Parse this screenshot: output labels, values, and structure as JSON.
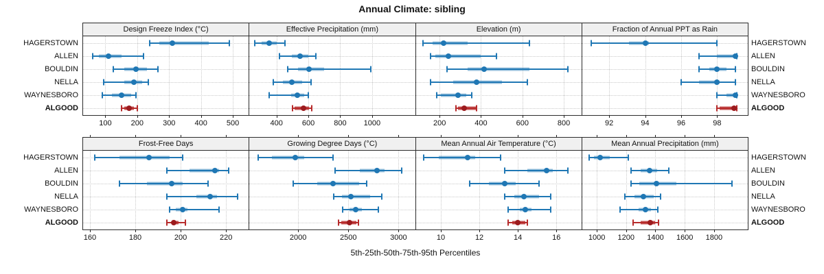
{
  "figure": {
    "title": "Annual Climate: sibling",
    "xlabel": "5th-25th-50th-75th-95th Percentiles"
  },
  "sites": [
    "HAGERSTOWN",
    "ALLEN",
    "BOULDIN",
    "NELLA",
    "WAYNESBORO",
    "ALGOOD"
  ],
  "highlight_site": "ALGOOD",
  "colors": {
    "series_blue": "#1f77b4",
    "highlight_red": "#b72b2b",
    "highlight_red_dot": "#9c1b1e",
    "strip_bg": "#f0f0f0",
    "grid_line": "#c9c9c9",
    "panel_border": "#2b2b2b"
  },
  "chart_data": {
    "type": "dotplot",
    "title": "Annual Climate: sibling",
    "xlabel": "5th-25th-50th-75th-95th Percentiles",
    "grid": true,
    "percentiles": [
      5,
      25,
      50,
      75,
      95
    ],
    "layout": "2 rows x 4 columns of panels, sites listed top to bottom on both sides",
    "panels": [
      {
        "title": "Design Freeze Index (°C)",
        "xmin": 30,
        "xmax": 550,
        "ticks": [
          100,
          200,
          300,
          400,
          500
        ],
        "data": {
          "HAGERSTOWN": [
            240,
            270,
            310,
            425,
            490
          ],
          "ALLEN": [
            60,
            80,
            110,
            150,
            220
          ],
          "BOULDIN": [
            125,
            160,
            197,
            230,
            265
          ],
          "NELLA": [
            95,
            160,
            190,
            215,
            235
          ],
          "WAYNESBORO": [
            90,
            120,
            150,
            180,
            195
          ],
          "ALGOOD": [
            150,
            160,
            175,
            190,
            200
          ]
        }
      },
      {
        "title": "Effective Precipitation (mm)",
        "xmin": 230,
        "xmax": 1270,
        "ticks": [
          400,
          600,
          800,
          1000
        ],
        "data": {
          "HAGERSTOWN": [
            265,
            305,
            355,
            400,
            455
          ],
          "ALLEN": [
            420,
            495,
            550,
            600,
            645
          ],
          "BOULDIN": [
            470,
            535,
            605,
            700,
            990
          ],
          "NELLA": [
            380,
            440,
            495,
            560,
            615
          ],
          "WAYNESBORO": [
            355,
            490,
            530,
            575,
            600
          ],
          "ALGOOD": [
            500,
            515,
            570,
            605,
            620
          ]
        }
      },
      {
        "title": "Elevation (m)",
        "xmin": 85,
        "xmax": 885,
        "ticks": [
          200,
          400,
          600,
          800
        ],
        "data": {
          "HAGERSTOWN": [
            120,
            165,
            220,
            335,
            635
          ],
          "ALLEN": [
            155,
            180,
            243,
            400,
            475
          ],
          "BOULDIN": [
            235,
            335,
            415,
            635,
            820
          ],
          "NELLA": [
            155,
            265,
            380,
            500,
            625
          ],
          "WAYNESBORO": [
            185,
            205,
            290,
            330,
            355
          ],
          "ALGOOD": [
            280,
            290,
            320,
            375,
            380
          ]
        }
      },
      {
        "title": "Fraction of Annual PPT as Rain",
        "xmin": 90.5,
        "xmax": 99.7,
        "ticks": [
          92,
          94,
          96,
          98
        ],
        "data": {
          "HAGERSTOWN": [
            91,
            93.1,
            94,
            94.2,
            98
          ],
          "ALLEN": [
            97,
            98,
            99,
            99.05,
            99.1
          ],
          "BOULDIN": [
            97,
            97.55,
            98,
            98.5,
            99
          ],
          "NELLA": [
            96,
            97,
            98,
            98.15,
            99
          ],
          "WAYNESBORO": [
            98,
            98.5,
            99,
            99.05,
            99.1
          ],
          "ALGOOD": [
            98,
            98.15,
            98.95,
            99.05,
            99.1
          ]
        }
      },
      {
        "title": "Frost-Free Days",
        "xmin": 157,
        "xmax": 230,
        "ticks": [
          160,
          180,
          200,
          220
        ],
        "data": {
          "HAGERSTOWN": [
            162,
            173,
            186,
            195,
            201
          ],
          "ALLEN": [
            194,
            204,
            215,
            217,
            221
          ],
          "BOULDIN": [
            173,
            185,
            196,
            201,
            212
          ],
          "NELLA": [
            194,
            207,
            213,
            216,
            225
          ],
          "WAYNESBORO": [
            195,
            198,
            201,
            203,
            217
          ],
          "ALGOOD": [
            194,
            196,
            197,
            199,
            202
          ]
        }
      },
      {
        "title": "Growing Degree Days (°C)",
        "xmin": 1515,
        "xmax": 3165,
        "ticks": [
          2000,
          2500,
          3000
        ],
        "data": {
          "HAGERSTOWN": [
            1600,
            1740,
            1970,
            2060,
            2350
          ],
          "ALLEN": [
            2370,
            2615,
            2785,
            2860,
            3030
          ],
          "BOULDIN": [
            1950,
            2190,
            2345,
            2610,
            2685
          ],
          "NELLA": [
            2355,
            2435,
            2525,
            2715,
            2835
          ],
          "WAYNESBORO": [
            2445,
            2510,
            2570,
            2635,
            2800
          ],
          "ALGOOD": [
            2405,
            2430,
            2515,
            2580,
            2600
          ]
        }
      },
      {
        "title": "Mean Annual Air Temperature (°C)",
        "xmin": 8.7,
        "xmax": 17.3,
        "ticks": [
          10,
          12,
          14,
          16
        ],
        "data": {
          "HAGERSTOWN": [
            9.1,
            9.9,
            11.4,
            11.8,
            13.1
          ],
          "ALLEN": [
            13.3,
            14.5,
            15.5,
            15.8,
            16.6
          ],
          "BOULDIN": [
            11.5,
            12.5,
            13.3,
            13.9,
            15.1
          ],
          "NELLA": [
            13.3,
            13.8,
            14.3,
            15.1,
            15.7
          ],
          "WAYNESBORO": [
            13.5,
            14.1,
            14.4,
            14.7,
            15.7
          ],
          "ALGOOD": [
            13.5,
            13.7,
            14.0,
            14.4,
            14.5
          ]
        }
      },
      {
        "title": "Mean Annual Precipitation (mm)",
        "xmin": 900,
        "xmax": 2030,
        "ticks": [
          1000,
          1200,
          1400,
          1600,
          1800
        ],
        "data": {
          "HAGERSTOWN": [
            950,
            980,
            1025,
            1090,
            1215
          ],
          "ALLEN": [
            1235,
            1300,
            1360,
            1410,
            1490
          ],
          "BOULDIN": [
            1235,
            1290,
            1405,
            1545,
            1920
          ],
          "NELLA": [
            1190,
            1255,
            1320,
            1390,
            1435
          ],
          "WAYNESBORO": [
            1160,
            1285,
            1330,
            1370,
            1415
          ],
          "ALGOOD": [
            1250,
            1300,
            1365,
            1400,
            1420
          ]
        }
      }
    ]
  }
}
